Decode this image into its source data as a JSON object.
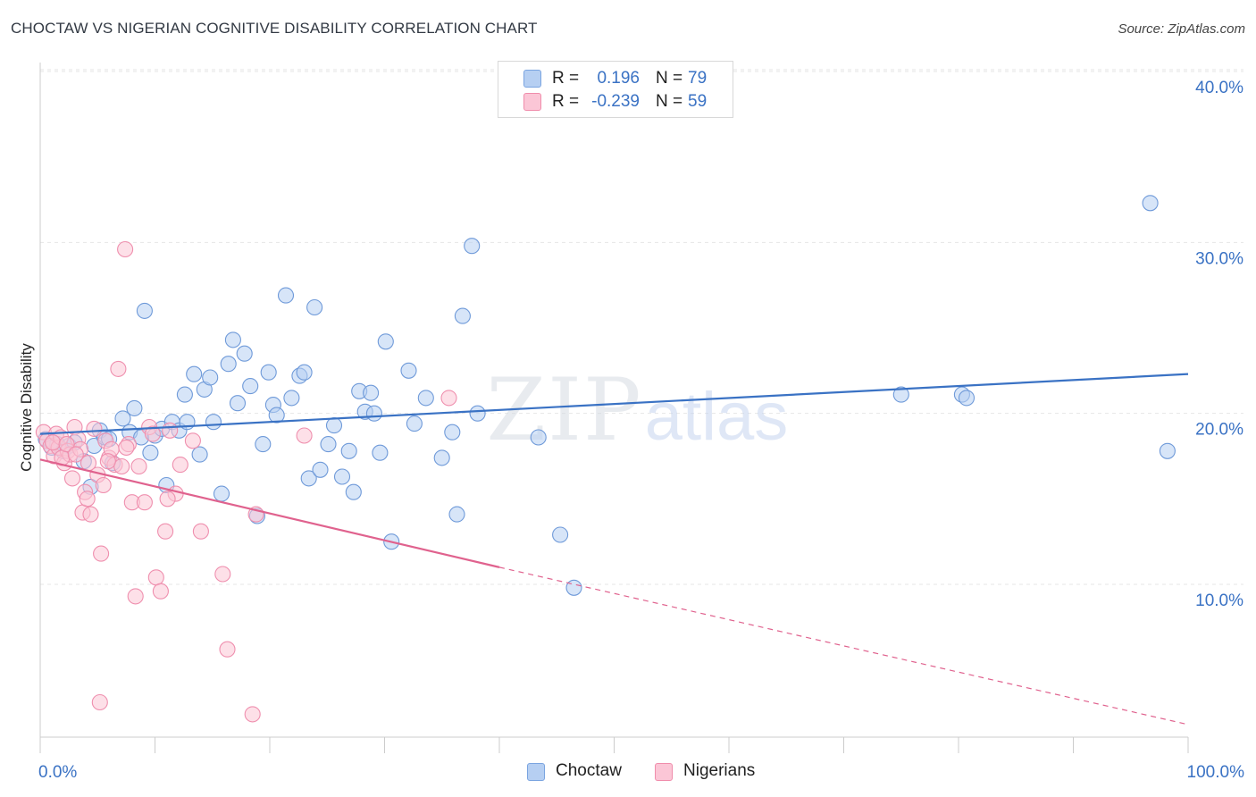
{
  "title": "CHOCTAW VS NIGERIAN COGNITIVE DISABILITY CORRELATION CHART",
  "source": "Source: ZipAtlas.com",
  "watermark": {
    "zip": "ZIP",
    "atlas": "atlas"
  },
  "legend": {
    "rows": [
      {
        "r_label": "R =",
        "r_value": "0.196",
        "n_label": "N =",
        "n_value": "79",
        "swatch_fill": "#b6cff2",
        "swatch_stroke": "#7aa4e0"
      },
      {
        "r_label": "R =",
        "r_value": "-0.239",
        "n_label": "N =",
        "n_value": "59",
        "swatch_fill": "#fbc6d6",
        "swatch_stroke": "#f08cab"
      }
    ]
  },
  "bottom_legend": [
    {
      "label": "Choctaw",
      "swatch_fill": "#b6cff2",
      "swatch_stroke": "#7aa4e0"
    },
    {
      "label": "Nigerians",
      "swatch_fill": "#fbc6d6",
      "swatch_stroke": "#f08cab"
    }
  ],
  "chart_data": {
    "type": "scatter",
    "title": "CHOCTAW VS NIGERIAN COGNITIVE DISABILITY CORRELATION CHART",
    "xlabel": "",
    "ylabel": "Cognitive Disability",
    "xlim": [
      0,
      100
    ],
    "ylim": [
      0,
      42
    ],
    "x_tick_labels": [
      "0.0%",
      "100.0%"
    ],
    "y_ticks": [
      10,
      20,
      30,
      40
    ],
    "y_tick_labels": [
      "10.0%",
      "20.0%",
      "30.0%",
      "40.0%"
    ],
    "grid": true,
    "legend_position": "top-center",
    "series": [
      {
        "name": "Choctaw",
        "color": "#3a72c4",
        "fill": "#b6cff2",
        "r": 0.196,
        "n": 79,
        "trend": {
          "x": [
            0,
            100
          ],
          "y": [
            18.8,
            22.3
          ]
        },
        "points": [
          [
            0.5,
            18.5
          ],
          [
            1.0,
            18.0
          ],
          [
            1.5,
            18.2
          ],
          [
            2.0,
            17.8
          ],
          [
            2.5,
            18.1
          ],
          [
            3.0,
            18.3
          ],
          [
            3.8,
            17.2
          ],
          [
            4.4,
            15.7
          ],
          [
            4.7,
            18.1
          ],
          [
            5.2,
            19.0
          ],
          [
            5.6,
            18.6
          ],
          [
            6.0,
            18.5
          ],
          [
            6.3,
            17.1
          ],
          [
            7.2,
            19.7
          ],
          [
            7.8,
            18.9
          ],
          [
            8.2,
            20.3
          ],
          [
            8.8,
            18.6
          ],
          [
            9.1,
            26.0
          ],
          [
            9.6,
            17.7
          ],
          [
            10.0,
            18.7
          ],
          [
            10.6,
            19.1
          ],
          [
            11.0,
            15.8
          ],
          [
            11.5,
            19.5
          ],
          [
            12.1,
            19.0
          ],
          [
            12.6,
            21.1
          ],
          [
            12.8,
            19.5
          ],
          [
            13.4,
            22.3
          ],
          [
            13.9,
            17.6
          ],
          [
            14.3,
            21.4
          ],
          [
            14.8,
            22.1
          ],
          [
            15.1,
            19.5
          ],
          [
            15.8,
            15.3
          ],
          [
            16.4,
            22.9
          ],
          [
            16.8,
            24.3
          ],
          [
            17.2,
            20.6
          ],
          [
            17.8,
            23.5
          ],
          [
            18.3,
            21.6
          ],
          [
            18.9,
            14.0
          ],
          [
            19.4,
            18.2
          ],
          [
            19.9,
            22.4
          ],
          [
            20.3,
            20.5
          ],
          [
            20.6,
            19.9
          ],
          [
            21.4,
            26.9
          ],
          [
            21.9,
            20.9
          ],
          [
            22.6,
            22.2
          ],
          [
            23.0,
            22.4
          ],
          [
            23.4,
            16.2
          ],
          [
            23.9,
            26.2
          ],
          [
            24.4,
            16.7
          ],
          [
            25.1,
            18.2
          ],
          [
            25.6,
            19.3
          ],
          [
            26.3,
            16.3
          ],
          [
            26.9,
            17.8
          ],
          [
            27.3,
            15.4
          ],
          [
            27.8,
            21.3
          ],
          [
            28.3,
            20.1
          ],
          [
            28.8,
            21.2
          ],
          [
            29.1,
            20.0
          ],
          [
            29.6,
            17.7
          ],
          [
            30.1,
            24.2
          ],
          [
            30.6,
            12.5
          ],
          [
            32.1,
            22.5
          ],
          [
            32.6,
            19.4
          ],
          [
            33.6,
            20.9
          ],
          [
            35.0,
            17.4
          ],
          [
            35.9,
            18.9
          ],
          [
            36.3,
            14.1
          ],
          [
            36.8,
            25.7
          ],
          [
            37.6,
            29.8
          ],
          [
            38.1,
            20.0
          ],
          [
            43.4,
            18.6
          ],
          [
            45.3,
            12.9
          ],
          [
            46.5,
            9.8
          ],
          [
            75.0,
            21.1
          ],
          [
            80.3,
            21.1
          ],
          [
            80.7,
            20.9
          ],
          [
            96.7,
            32.3
          ],
          [
            98.2,
            17.8
          ]
        ]
      },
      {
        "name": "Nigerians",
        "color": "#e0628e",
        "fill": "#fbc6d6",
        "r": -0.239,
        "n": 59,
        "trend": {
          "x": [
            0,
            40
          ],
          "y": [
            17.3,
            11.0
          ]
        },
        "trend_dashed": {
          "x": [
            40,
            100
          ],
          "y": [
            11.0,
            1.8
          ]
        },
        "points": [
          [
            0.3,
            18.9
          ],
          [
            0.6,
            18.4
          ],
          [
            0.9,
            18.1
          ],
          [
            1.2,
            17.5
          ],
          [
            1.4,
            18.8
          ],
          [
            1.6,
            18.0
          ],
          [
            1.8,
            18.6
          ],
          [
            2.1,
            17.1
          ],
          [
            2.4,
            17.8
          ],
          [
            2.6,
            17.6
          ],
          [
            2.8,
            16.2
          ],
          [
            3.0,
            19.2
          ],
          [
            3.3,
            18.5
          ],
          [
            3.5,
            17.9
          ],
          [
            3.7,
            14.2
          ],
          [
            3.9,
            15.4
          ],
          [
            4.1,
            15.0
          ],
          [
            4.4,
            14.1
          ],
          [
            4.7,
            19.1
          ],
          [
            5.0,
            16.4
          ],
          [
            5.3,
            11.8
          ],
          [
            5.5,
            15.8
          ],
          [
            5.7,
            18.4
          ],
          [
            6.0,
            17.4
          ],
          [
            6.2,
            17.9
          ],
          [
            6.5,
            17.0
          ],
          [
            6.8,
            22.6
          ],
          [
            7.1,
            16.9
          ],
          [
            7.4,
            29.6
          ],
          [
            7.7,
            18.2
          ],
          [
            8.0,
            14.8
          ],
          [
            8.3,
            9.3
          ],
          [
            8.6,
            16.9
          ],
          [
            9.1,
            14.8
          ],
          [
            9.5,
            19.2
          ],
          [
            9.8,
            18.8
          ],
          [
            10.1,
            10.4
          ],
          [
            10.5,
            9.6
          ],
          [
            10.9,
            13.1
          ],
          [
            11.3,
            19.0
          ],
          [
            11.8,
            15.3
          ],
          [
            12.2,
            17.0
          ],
          [
            13.3,
            18.4
          ],
          [
            14.0,
            13.1
          ],
          [
            15.9,
            10.6
          ],
          [
            16.3,
            6.2
          ],
          [
            18.5,
            2.4
          ],
          [
            18.8,
            14.1
          ],
          [
            23.0,
            18.7
          ],
          [
            35.6,
            20.9
          ],
          [
            1.1,
            18.3
          ],
          [
            1.9,
            17.4
          ],
          [
            2.3,
            18.2
          ],
          [
            3.1,
            17.6
          ],
          [
            4.2,
            17.1
          ],
          [
            5.9,
            17.2
          ],
          [
            5.2,
            3.1
          ],
          [
            11.1,
            15.0
          ],
          [
            7.5,
            18.0
          ]
        ]
      }
    ]
  }
}
